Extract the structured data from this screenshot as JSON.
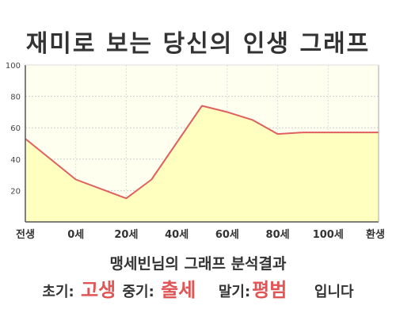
{
  "title": "재미로 보는 당신의 인생 그래프",
  "subtitle": "맹세빈님의 그래프 분석결과",
  "summary": {
    "early_label": "초기:",
    "early_value": "고생",
    "mid_label": "중기:",
    "mid_value": "출세",
    "late_label": "말기:",
    "late_value": "평범",
    "suffix": "입니다"
  },
  "colors": {
    "fill": "#ffffc0",
    "plot_bg": "#fffff0",
    "line": "#e06060",
    "accent": "#e05555"
  },
  "chart_data": {
    "type": "area",
    "ylim": [
      0,
      100
    ],
    "yticks": [
      "20",
      "40",
      "60",
      "80",
      "100"
    ],
    "ytick_values": [
      20,
      40,
      60,
      80,
      100
    ],
    "xticks": [
      "전생",
      "0세",
      "20세",
      "40세",
      "60세",
      "80세",
      "100세",
      "환생"
    ],
    "xtick_positions": [
      -20,
      0,
      20,
      40,
      60,
      80,
      100,
      120
    ],
    "xlim": [
      -20,
      120
    ],
    "grid": true,
    "series": [
      {
        "x": [
          -20,
          0,
          20,
          30,
          50,
          60,
          70,
          80,
          90,
          100,
          110,
          120
        ],
        "values": [
          53,
          27,
          15,
          27,
          74,
          70,
          65,
          56,
          57,
          57,
          57,
          57
        ]
      }
    ]
  }
}
